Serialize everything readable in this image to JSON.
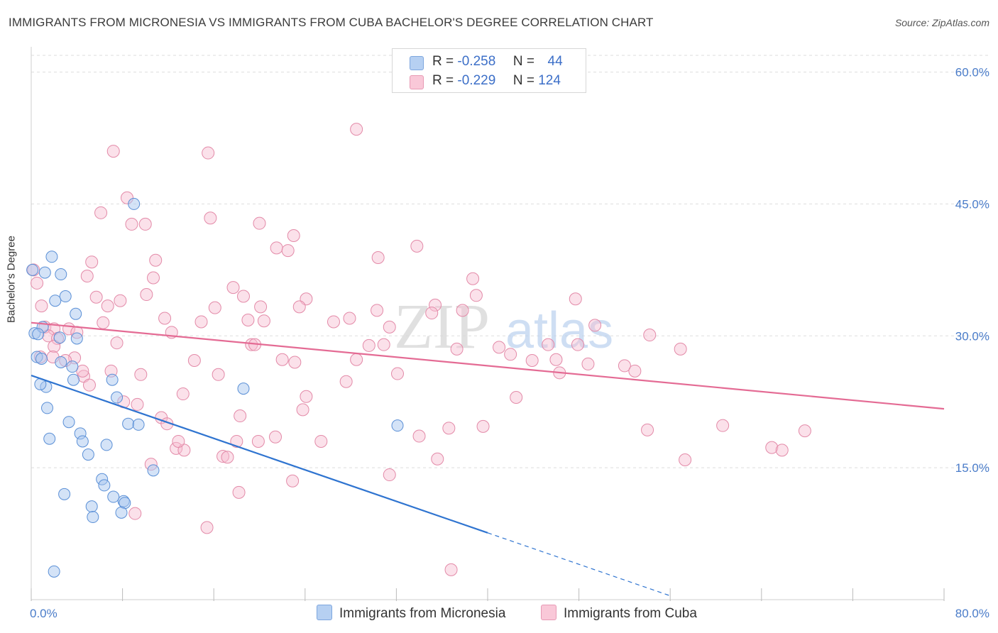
{
  "title": "IMMIGRANTS FROM MICRONESIA VS IMMIGRANTS FROM CUBA BACHELOR'S DEGREE CORRELATION CHART",
  "source": "Source: ZipAtlas.com",
  "watermark": {
    "zip": "ZIP",
    "atlas": "atlas"
  },
  "legend": {
    "r_label": "R =",
    "n_label": "N =",
    "micronesia": {
      "r": "-0.258",
      "n": "44"
    },
    "cuba": {
      "r": "-0.229",
      "n": "124"
    }
  },
  "bottom_legend": {
    "micronesia": "Immigrants from Micronesia",
    "cuba": "Immigrants from Cuba"
  },
  "colors": {
    "micronesia_fill": "#aac8f0",
    "micronesia_stroke": "#5a8fd6",
    "micronesia_line": "#2f74d0",
    "cuba_fill": "#f7bcd0",
    "cuba_stroke": "#e38aa8",
    "cuba_line": "#e46b94",
    "tick_text": "#4a7cc9"
  },
  "chart_data": {
    "type": "scatter",
    "title": "IMMIGRANTS FROM MICRONESIA VS IMMIGRANTS FROM CUBA BACHELOR'S DEGREE CORRELATION CHART",
    "xlabel": "",
    "ylabel": "Bachelor's Degree",
    "xlim": [
      0,
      80
    ],
    "ylim": [
      0,
      64
    ],
    "x_tick_labels": [
      "0.0%",
      "80.0%"
    ],
    "y_ticks": [
      15,
      30,
      45,
      60
    ],
    "y_tick_labels": [
      "15.0%",
      "30.0%",
      "45.0%",
      "60.0%"
    ],
    "grid": true,
    "series": [
      {
        "name": "Immigrants from Micronesia",
        "trend": {
          "x0": 0,
          "y0": 25.5,
          "x1": 40,
          "y1": 7.6,
          "dash_to_x": 56
        },
        "points": [
          [
            0.1,
            37.5
          ],
          [
            1.8,
            39.0
          ],
          [
            1.2,
            37.2
          ],
          [
            2.6,
            37.0
          ],
          [
            3.0,
            34.5
          ],
          [
            2.1,
            34.0
          ],
          [
            3.9,
            32.5
          ],
          [
            0.3,
            30.3
          ],
          [
            1.0,
            31.0
          ],
          [
            0.6,
            30.2
          ],
          [
            2.5,
            29.8
          ],
          [
            4.0,
            29.7
          ],
          [
            0.5,
            27.6
          ],
          [
            0.9,
            27.4
          ],
          [
            2.6,
            27.0
          ],
          [
            3.6,
            26.5
          ],
          [
            3.7,
            25.0
          ],
          [
            7.1,
            25.0
          ],
          [
            1.3,
            24.2
          ],
          [
            7.5,
            23.0
          ],
          [
            1.4,
            21.8
          ],
          [
            3.3,
            20.2
          ],
          [
            8.5,
            20.0
          ],
          [
            9.4,
            19.9
          ],
          [
            4.3,
            18.9
          ],
          [
            1.6,
            18.3
          ],
          [
            4.5,
            18.0
          ],
          [
            6.6,
            17.6
          ],
          [
            5.0,
            16.5
          ],
          [
            10.7,
            14.7
          ],
          [
            6.2,
            13.7
          ],
          [
            6.4,
            13.0
          ],
          [
            2.9,
            12.0
          ],
          [
            7.2,
            11.7
          ],
          [
            8.1,
            11.2
          ],
          [
            8.2,
            11.0
          ],
          [
            5.3,
            10.6
          ],
          [
            7.9,
            9.9
          ],
          [
            5.4,
            9.4
          ],
          [
            2.0,
            3.2
          ],
          [
            9.0,
            45.0
          ],
          [
            18.6,
            24.0
          ],
          [
            32.1,
            19.8
          ],
          [
            0.8,
            24.5
          ]
        ]
      },
      {
        "name": "Immigrants from Cuba",
        "trend": {
          "x0": 0,
          "y0": 31.5,
          "x1": 80,
          "y1": 21.7
        },
        "points": [
          [
            0.2,
            37.5
          ],
          [
            0.5,
            36.0
          ],
          [
            28.5,
            53.5
          ],
          [
            7.2,
            51.0
          ],
          [
            15.5,
            50.8
          ],
          [
            8.4,
            45.7
          ],
          [
            6.1,
            44.0
          ],
          [
            15.7,
            43.4
          ],
          [
            8.8,
            42.7
          ],
          [
            10.0,
            42.7
          ],
          [
            20.0,
            42.8
          ],
          [
            23.0,
            41.4
          ],
          [
            21.5,
            40.0
          ],
          [
            22.5,
            39.7
          ],
          [
            33.8,
            40.2
          ],
          [
            30.4,
            38.9
          ],
          [
            5.3,
            38.4
          ],
          [
            10.9,
            38.6
          ],
          [
            4.9,
            36.8
          ],
          [
            10.7,
            36.6
          ],
          [
            17.7,
            35.5
          ],
          [
            38.7,
            36.5
          ],
          [
            10.1,
            34.7
          ],
          [
            18.6,
            34.5
          ],
          [
            24.1,
            34.2
          ],
          [
            39.0,
            34.6
          ],
          [
            47.7,
            34.2
          ],
          [
            5.7,
            34.4
          ],
          [
            7.8,
            34.0
          ],
          [
            6.7,
            33.4
          ],
          [
            0.9,
            33.4
          ],
          [
            16.1,
            33.2
          ],
          [
            23.5,
            33.3
          ],
          [
            20.1,
            33.3
          ],
          [
            30.3,
            32.9
          ],
          [
            35.4,
            33.5
          ],
          [
            37.8,
            32.9
          ],
          [
            35.1,
            32.6
          ],
          [
            11.7,
            32.0
          ],
          [
            14.9,
            31.6
          ],
          [
            19.0,
            31.8
          ],
          [
            20.4,
            31.7
          ],
          [
            26.5,
            31.6
          ],
          [
            27.9,
            32.0
          ],
          [
            6.3,
            31.5
          ],
          [
            1.2,
            31.0
          ],
          [
            2.0,
            30.8
          ],
          [
            3.3,
            30.8
          ],
          [
            4.0,
            30.4
          ],
          [
            31.4,
            31.0
          ],
          [
            12.3,
            30.4
          ],
          [
            49.4,
            31.2
          ],
          [
            54.2,
            30.1
          ],
          [
            1.5,
            30.0
          ],
          [
            2.3,
            29.7
          ],
          [
            7.5,
            29.2
          ],
          [
            19.3,
            29.0
          ],
          [
            19.6,
            29.0
          ],
          [
            29.6,
            28.9
          ],
          [
            30.9,
            29.0
          ],
          [
            45.3,
            29.0
          ],
          [
            47.9,
            29.0
          ],
          [
            37.3,
            28.5
          ],
          [
            41.0,
            28.7
          ],
          [
            56.9,
            28.5
          ],
          [
            2.0,
            28.8
          ],
          [
            3.8,
            27.5
          ],
          [
            0.8,
            27.6
          ],
          [
            1.9,
            27.6
          ],
          [
            14.3,
            27.2
          ],
          [
            22.0,
            27.3
          ],
          [
            23.1,
            27.0
          ],
          [
            28.5,
            27.3
          ],
          [
            43.9,
            27.2
          ],
          [
            46.0,
            27.3
          ],
          [
            42.0,
            27.9
          ],
          [
            48.8,
            26.8
          ],
          [
            52.0,
            26.6
          ],
          [
            52.9,
            26.0
          ],
          [
            7.0,
            26.0
          ],
          [
            9.6,
            25.6
          ],
          [
            16.4,
            25.6
          ],
          [
            32.1,
            25.7
          ],
          [
            4.6,
            25.4
          ],
          [
            46.3,
            25.8
          ],
          [
            27.6,
            24.8
          ],
          [
            5.1,
            24.4
          ],
          [
            13.3,
            23.4
          ],
          [
            24.1,
            23.1
          ],
          [
            42.5,
            23.0
          ],
          [
            8.1,
            22.5
          ],
          [
            9.3,
            22.2
          ],
          [
            23.8,
            21.6
          ],
          [
            11.4,
            20.7
          ],
          [
            11.9,
            20.0
          ],
          [
            18.3,
            20.9
          ],
          [
            18.0,
            18.0
          ],
          [
            19.9,
            18.0
          ],
          [
            21.4,
            18.5
          ],
          [
            25.4,
            18.0
          ],
          [
            34.0,
            18.6
          ],
          [
            36.6,
            19.5
          ],
          [
            39.6,
            19.7
          ],
          [
            54.0,
            19.3
          ],
          [
            60.6,
            19.8
          ],
          [
            67.8,
            19.2
          ],
          [
            12.7,
            17.2
          ],
          [
            13.4,
            17.0
          ],
          [
            12.9,
            18.0
          ],
          [
            64.9,
            17.3
          ],
          [
            65.8,
            17.0
          ],
          [
            16.8,
            16.3
          ],
          [
            17.2,
            16.2
          ],
          [
            35.6,
            16.0
          ],
          [
            57.3,
            15.9
          ],
          [
            10.5,
            15.4
          ],
          [
            31.4,
            14.2
          ],
          [
            22.9,
            13.5
          ],
          [
            18.2,
            12.2
          ],
          [
            9.1,
            9.8
          ],
          [
            15.4,
            8.2
          ],
          [
            36.8,
            3.4
          ],
          [
            4.5,
            26.0
          ],
          [
            3.0,
            27.2
          ]
        ]
      }
    ]
  }
}
